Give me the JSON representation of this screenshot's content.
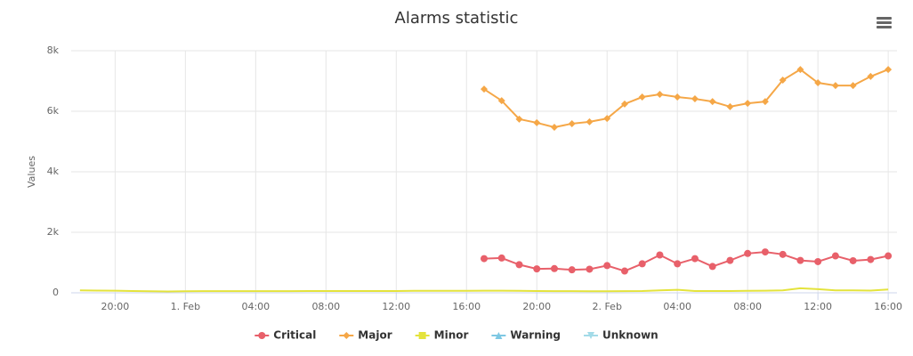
{
  "chart_data": {
    "type": "line",
    "title": "Alarms statistic",
    "y_label": "Values",
    "categories": [
      null,
      null,
      "20:00",
      null,
      null,
      null,
      "1. Feb",
      null,
      null,
      null,
      "04:00",
      null,
      null,
      null,
      "08:00",
      null,
      null,
      null,
      "12:00",
      null,
      null,
      null,
      "16:00",
      null,
      null,
      null,
      "20:00",
      null,
      null,
      null,
      "2. Feb",
      null,
      null,
      null,
      "04:00",
      null,
      null,
      null,
      "08:00",
      null,
      null,
      null,
      "12:00",
      null,
      null,
      null,
      "16:00"
    ],
    "ylim": [
      0,
      8000
    ],
    "yticks": [
      {
        "value": 0,
        "label": "0"
      },
      {
        "value": 2000,
        "label": "2k"
      },
      {
        "value": 4000,
        "label": "4k"
      },
      {
        "value": 6000,
        "label": "6k"
      },
      {
        "value": 8000,
        "label": "8k"
      }
    ],
    "grid": true,
    "legend": "bottom",
    "series": [
      {
        "name": "Critical",
        "color": "#e8606a",
        "marker": "circle",
        "values": [
          null,
          null,
          null,
          null,
          null,
          null,
          null,
          null,
          null,
          null,
          null,
          null,
          null,
          null,
          null,
          null,
          null,
          null,
          null,
          null,
          null,
          null,
          null,
          1130,
          1150,
          930,
          790,
          800,
          760,
          780,
          900,
          720,
          960,
          1250,
          960,
          1130,
          870,
          1070,
          1300,
          1350,
          1270,
          1070,
          1030,
          1220,
          1060,
          1100,
          1220
        ]
      },
      {
        "name": "Major",
        "color": "#f5a747",
        "marker": "diamond",
        "values": [
          null,
          null,
          null,
          null,
          null,
          null,
          null,
          null,
          null,
          null,
          null,
          null,
          null,
          null,
          null,
          null,
          null,
          null,
          null,
          null,
          null,
          null,
          null,
          6730,
          6350,
          5740,
          5620,
          5470,
          5590,
          5650,
          5760,
          6240,
          6470,
          6560,
          6470,
          6410,
          6320,
          6150,
          6260,
          6320,
          7030,
          7380,
          6940,
          6850,
          6850,
          7150,
          7380
        ]
      },
      {
        "name": "Minor",
        "color": "#e4e33c",
        "marker": "square",
        "values": [
          80,
          75,
          70,
          60,
          50,
          45,
          50,
          55,
          55,
          55,
          55,
          55,
          55,
          60,
          60,
          60,
          60,
          60,
          60,
          65,
          65,
          65,
          65,
          70,
          70,
          65,
          60,
          55,
          55,
          50,
          50,
          55,
          60,
          80,
          100,
          60,
          60,
          60,
          65,
          70,
          80,
          150,
          120,
          80,
          80,
          75,
          110
        ]
      },
      {
        "name": "Warning",
        "color": "#7ec8e3",
        "marker": "triangle",
        "values": [
          null,
          null,
          null,
          null,
          null,
          null,
          null,
          null,
          null,
          null,
          null,
          null,
          null,
          null,
          null,
          null,
          null,
          null,
          null,
          null,
          null,
          null,
          null,
          null,
          null,
          null,
          null,
          null,
          null,
          null,
          null,
          null,
          null,
          null,
          null,
          null,
          null,
          null,
          null,
          null,
          null,
          null,
          null,
          null,
          null,
          null,
          null
        ]
      },
      {
        "name": "Unknown",
        "color": "#a3dbe8",
        "marker": "triangle-down",
        "values": [
          null,
          null,
          null,
          null,
          null,
          null,
          null,
          null,
          null,
          null,
          null,
          null,
          null,
          null,
          null,
          null,
          null,
          null,
          null,
          null,
          null,
          null,
          null,
          null,
          null,
          null,
          null,
          null,
          null,
          null,
          null,
          null,
          null,
          null,
          null,
          null,
          null,
          null,
          null,
          null,
          null,
          null,
          null,
          null,
          null,
          null,
          null
        ]
      }
    ]
  }
}
